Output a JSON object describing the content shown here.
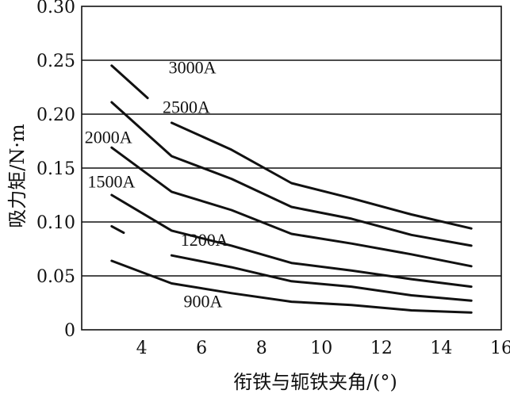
{
  "chart_data": {
    "type": "line",
    "xlabel": "衔铁与轭铁夹角/(°)",
    "ylabel": "吸力矩/N·m",
    "xlim": [
      2,
      16
    ],
    "ylim": [
      0,
      0.3
    ],
    "xticks": [
      4,
      6,
      8,
      10,
      12,
      14,
      16
    ],
    "xtick_labels": [
      "4",
      "6",
      "8",
      "10",
      "12",
      "14",
      "16"
    ],
    "yticks": [
      0,
      0.05,
      0.1,
      0.15,
      0.2,
      0.25,
      0.3
    ],
    "ytick_labels": [
      "0",
      "0.05",
      "0.10",
      "0.15",
      "0.20",
      "0.25",
      "0.30"
    ],
    "grid": "horizontal",
    "series": [
      {
        "name": "3000A",
        "x": [
          3,
          4.2,
          5,
          7,
          9,
          11,
          13,
          15
        ],
        "y": [
          0.245,
          0.215,
          0.192,
          0.167,
          0.136,
          0.122,
          0.107,
          0.094
        ]
      },
      {
        "name": "2500A",
        "x": [
          3,
          5,
          7,
          9,
          11,
          13,
          15
        ],
        "y": [
          0.211,
          0.161,
          0.14,
          0.114,
          0.103,
          0.088,
          0.078
        ]
      },
      {
        "name": "2000A",
        "x": [
          3,
          5,
          7,
          9,
          11,
          13,
          15
        ],
        "y": [
          0.169,
          0.128,
          0.111,
          0.089,
          0.08,
          0.07,
          0.059
        ]
      },
      {
        "name": "1500A",
        "x": [
          3,
          5,
          7,
          9,
          11,
          13,
          15
        ],
        "y": [
          0.125,
          0.092,
          0.078,
          0.062,
          0.055,
          0.047,
          0.04
        ]
      },
      {
        "name": "1200A",
        "x": [
          3,
          3.4,
          5,
          7,
          9,
          11,
          13,
          15
        ],
        "y": [
          0.096,
          0.09,
          0.069,
          0.058,
          0.045,
          0.04,
          0.032,
          0.027
        ]
      },
      {
        "name": "900A",
        "x": [
          3,
          5,
          7,
          9,
          11,
          13,
          15
        ],
        "y": [
          0.064,
          0.043,
          0.034,
          0.026,
          0.023,
          0.018,
          0.016
        ]
      }
    ],
    "annotations": [
      {
        "series": "3000A",
        "text": "3000A",
        "x": 4.9,
        "y": 0.238
      },
      {
        "series": "2500A",
        "text": "2500A",
        "x": 4.7,
        "y": 0.201
      },
      {
        "series": "2000A",
        "text": "2000A",
        "x": 2.1,
        "y": 0.173
      },
      {
        "series": "1500A",
        "text": "1500A",
        "x": 2.2,
        "y": 0.132
      },
      {
        "series": "1200A",
        "text": "1200A",
        "x": 5.3,
        "y": 0.078
      },
      {
        "series": "900A",
        "text": "900A",
        "x": 5.4,
        "y": 0.021
      }
    ]
  }
}
